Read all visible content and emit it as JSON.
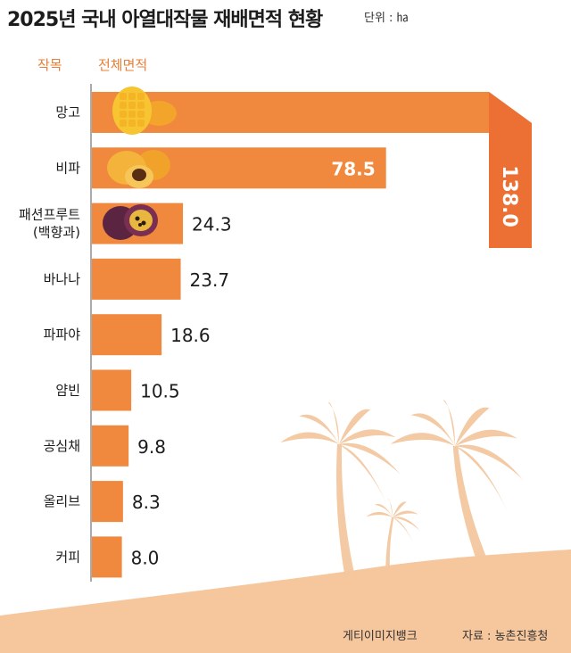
{
  "title": "2025년 국내 아열대작물 재배면적 현황",
  "unit": "단위 : ㏊",
  "header": {
    "crop": "작목",
    "area": "전체면적"
  },
  "footer": {
    "credit": "게티이미지뱅크",
    "source": "자료 : 농촌진흥청"
  },
  "colors": {
    "bar": "#f0883e",
    "bar_top": "#ec6f34",
    "sand": "#f6c69d",
    "palm": "#f3caa4",
    "value_on_bar": "#ffffff",
    "value_text": "#1c1c1c"
  },
  "chart_data": {
    "type": "bar",
    "orientation": "horizontal",
    "categories": [
      "망고",
      "비파",
      "패션프루트\n(백향과)",
      "바나나",
      "파파야",
      "얌빈",
      "공심채",
      "올리브",
      "커피"
    ],
    "values": [
      138.0,
      78.5,
      24.3,
      23.7,
      18.6,
      10.5,
      9.8,
      8.3,
      8.0
    ],
    "value_labels": [
      "138.0",
      "78.5",
      "24.3",
      "23.7",
      "18.6",
      "10.5",
      "9.8",
      "8.3",
      "8.0"
    ],
    "title": "2025년 국내 아열대작물 재배면적 현황",
    "unit": "㏊",
    "xlabel": "",
    "ylabel": "",
    "grid": false,
    "legend": "none",
    "note": "top bar folds downward at the right edge"
  }
}
